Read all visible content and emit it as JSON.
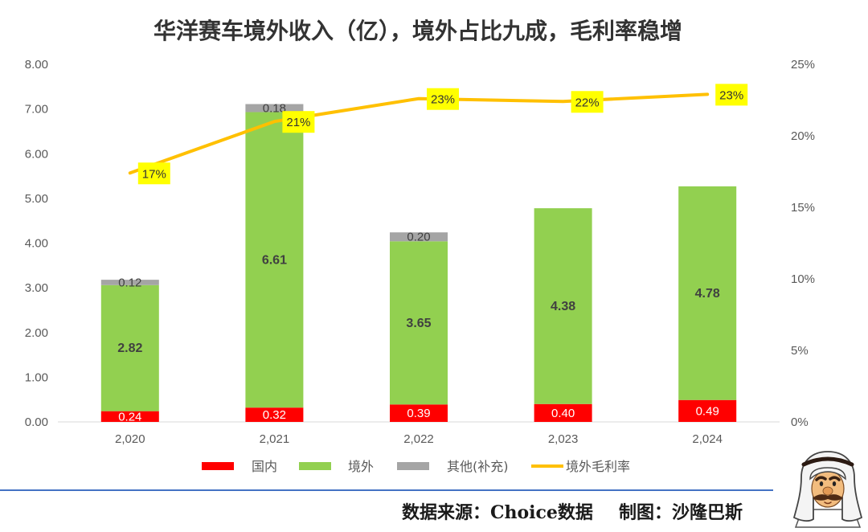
{
  "chart_data": {
    "type": "bar",
    "stacked": true,
    "title": "华洋赛车境外收入（亿），境外占比九成，毛利率稳增",
    "categories": [
      "2,020",
      "2,021",
      "2,022",
      "2,023",
      "2,024"
    ],
    "series": [
      {
        "name": "国内",
        "type": "bar",
        "axis": "left",
        "color": "#FF0000",
        "values": [
          0.24,
          0.32,
          0.39,
          0.4,
          0.49
        ],
        "data_labels": [
          "0.24",
          "0.32",
          "0.39",
          "0.40",
          "0.49"
        ]
      },
      {
        "name": "境外",
        "type": "bar",
        "axis": "left",
        "color": "#92D050",
        "values": [
          2.82,
          6.61,
          3.65,
          4.38,
          4.78
        ],
        "data_labels": [
          "2.82",
          "6.61",
          "3.65",
          "4.38",
          "4.78"
        ]
      },
      {
        "name": "其他(补充)",
        "type": "bar",
        "axis": "left",
        "color": "#A5A5A5",
        "values": [
          0.12,
          0.18,
          0.2,
          null,
          null
        ],
        "data_labels": [
          "0.12",
          "0.18",
          "0.20",
          null,
          null
        ]
      },
      {
        "name": "境外毛利率",
        "type": "line",
        "axis": "right",
        "color": "#FFC000",
        "label_background": "#FFFF00",
        "values": [
          17.4,
          21.0,
          22.6,
          22.4,
          22.9
        ],
        "data_labels": [
          "17%",
          "21%",
          "23%",
          "22%",
          "23%"
        ]
      }
    ],
    "y_left": {
      "min": 0,
      "max": 8,
      "step": 1,
      "tick_labels": [
        "0.00",
        "1.00",
        "2.00",
        "3.00",
        "4.00",
        "5.00",
        "6.00",
        "7.00",
        "8.00"
      ]
    },
    "y_right": {
      "min": 0,
      "max": 25,
      "step": 5,
      "tick_labels": [
        "0%",
        "5%",
        "10%",
        "15%",
        "20%",
        "25%"
      ]
    },
    "grid": false,
    "legend": "bottom"
  },
  "footer": {
    "source": "数据来源：Choice数据",
    "credit": "制图：沙隆巴斯",
    "rule_color": "#4472C4"
  }
}
